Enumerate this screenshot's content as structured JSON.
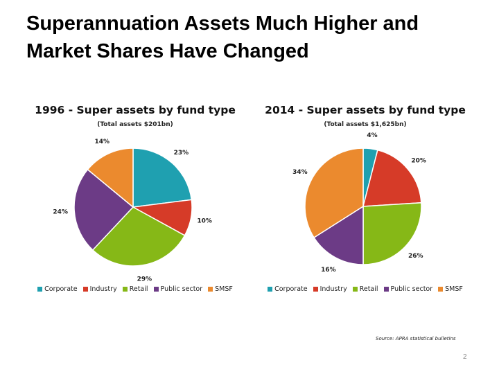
{
  "slide": {
    "title_line1": "Superannuation Assets Much Higher and",
    "title_line2": "Market Shares Have Changed",
    "source": "Source: APRA statistical bulletins",
    "page_number": "2"
  },
  "colors": {
    "Corporate": "#1fa0b0",
    "Industry": "#d63b28",
    "Retail": "#86b817",
    "Public sector": "#6c3b86",
    "SMSF": "#eb8a2e"
  },
  "chart_data": [
    {
      "type": "pie",
      "title": "1996 - Super assets by fund type",
      "subtitle": "(Total assets $201bn)",
      "categories": [
        "Corporate",
        "Industry",
        "Retail",
        "Public sector",
        "SMSF"
      ],
      "values": [
        23,
        10,
        29,
        24,
        14
      ],
      "labels": [
        "23%",
        "10%",
        "29%",
        "24%",
        "14%"
      ],
      "legend": [
        "Corporate",
        "Industry",
        "Retail",
        "Public sector",
        "SMSF"
      ],
      "legend_position": "bottom"
    },
    {
      "type": "pie",
      "title": "2014 - Super assets by fund type",
      "subtitle": "(Total assets $1,625bn)",
      "categories": [
        "Corporate",
        "Industry",
        "Retail",
        "Public sector",
        "SMSF"
      ],
      "values": [
        4,
        20,
        26,
        16,
        34
      ],
      "labels": [
        "4%",
        "20%",
        "26%",
        "16%",
        "34%"
      ],
      "legend": [
        "Corporate",
        "Industry",
        "Retail",
        "Public sector",
        "SMSF"
      ],
      "legend_position": "bottom"
    }
  ]
}
